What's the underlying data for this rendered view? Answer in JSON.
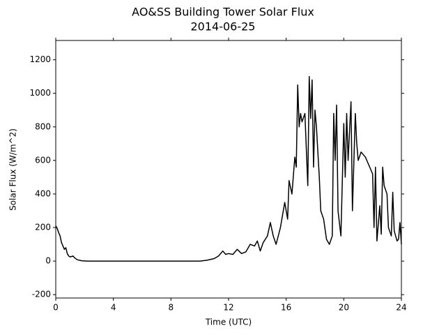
{
  "chart_data": {
    "type": "line",
    "title": "AO&SS Building Tower Solar Flux",
    "subtitle": "2014-06-25",
    "xlabel": "Time (UTC)",
    "ylabel": "Solar Flux (W/m^2)",
    "xlim": [
      0,
      24
    ],
    "xticks": [
      0,
      4,
      8,
      12,
      16,
      20,
      24
    ],
    "ylim": [
      -220,
      1315
    ],
    "yticks": [
      -200,
      0,
      200,
      400,
      600,
      800,
      1000,
      1200
    ],
    "series": [
      {
        "name": "Solar Flux",
        "color": "#000000",
        "x": [
          0,
          0.1,
          0.2,
          0.3,
          0.4,
          0.5,
          0.6,
          0.7,
          0.8,
          0.9,
          1.0,
          1.2,
          1.3,
          1.5,
          1.8,
          2.2,
          10,
          10.5,
          11,
          11.3,
          11.6,
          11.8,
          12,
          12.3,
          12.6,
          12.9,
          13.2,
          13.5,
          13.8,
          14,
          14.2,
          14.4,
          14.7,
          14.9,
          15.1,
          15.3,
          15.6,
          15.9,
          16.1,
          16.2,
          16.4,
          16.6,
          16.7,
          16.8,
          16.9,
          17.0,
          17.1,
          17.3,
          17.5,
          17.6,
          17.7,
          17.8,
          17.9,
          18.0,
          18.1,
          18.3,
          18.4,
          18.6,
          18.8,
          19,
          19.2,
          19.3,
          19.4,
          19.5,
          19.6,
          19.8,
          20,
          20.1,
          20.2,
          20.3,
          20.5,
          20.6,
          20.8,
          20.9,
          21.0,
          21.2,
          21.5,
          21.8,
          22.0,
          22.1,
          22.2,
          22.3,
          22.5,
          22.6,
          22.7,
          22.8,
          23.0,
          23.1,
          23.3,
          23.4,
          23.5,
          23.7,
          23.8,
          23.9,
          24
        ],
        "values": [
          210,
          195,
          170,
          150,
          110,
          90,
          70,
          80,
          45,
          30,
          25,
          30,
          20,
          8,
          2,
          0,
          0,
          5,
          15,
          30,
          60,
          40,
          45,
          40,
          70,
          45,
          55,
          100,
          90,
          120,
          60,
          110,
          150,
          230,
          150,
          100,
          200,
          350,
          250,
          480,
          400,
          620,
          560,
          1050,
          800,
          880,
          830,
          880,
          450,
          1100,
          850,
          1080,
          560,
          900,
          800,
          500,
          300,
          250,
          130,
          100,
          150,
          880,
          600,
          930,
          300,
          150,
          820,
          500,
          880,
          600,
          950,
          300,
          880,
          700,
          600,
          650,
          620,
          560,
          520,
          200,
          560,
          120,
          330,
          160,
          560,
          450,
          400,
          200,
          150,
          410,
          180,
          120,
          130,
          230,
          100
        ]
      }
    ]
  }
}
